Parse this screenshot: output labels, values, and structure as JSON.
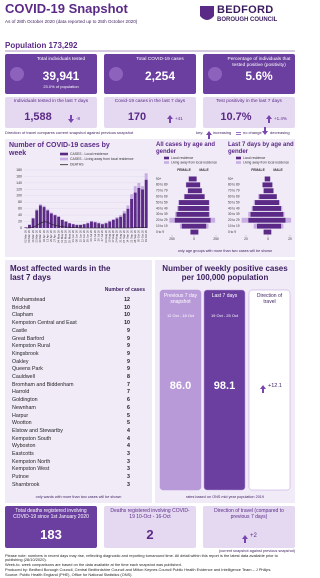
{
  "header": {
    "title": "COVID-19 Snapshot",
    "subtitle": "As of 28th October 2020 (data reported up to 25th October 2020)",
    "logo_main": "BEDFORD",
    "logo_sub": "BOROUGH COUNCIL"
  },
  "population": "Population 173,292",
  "totals": [
    {
      "label": "Total individuals tested",
      "value": "39,941",
      "note": "23.0% of population"
    },
    {
      "label": "Total COVID-19 cases",
      "value": "2,254"
    },
    {
      "label": "Percentage of individuals that tested positive (positivity)",
      "value": "5.6%"
    }
  ],
  "last_7_days": [
    {
      "label": "Individuals tested in the last 7 days",
      "value": "1,588",
      "change": "-8",
      "direction": "down"
    },
    {
      "label": "Covid-19 cases in the last 7 days",
      "value": "170",
      "change": "+41",
      "direction": "up"
    },
    {
      "label": "Test positivity in the last 7 days",
      "value": "10.7%",
      "change": "+1.4%",
      "direction": "up"
    }
  ],
  "travel_note": "Direction of travel compares current snapshot against previous snapshot",
  "key": {
    "label": "key:",
    "increasing": "increasing",
    "no_change": "no change",
    "decreasing": "decreasing"
  },
  "weekly_chart": {
    "type": "bar",
    "title": "Number of COVID-19 cases by week",
    "categories": [
      "02 Mar 20",
      "09 Mar 20",
      "16 Mar 20",
      "23 Mar 20",
      "30 Mar 20",
      "06 Apr 20",
      "13 Apr 20",
      "20 Apr 20",
      "27 Apr 20",
      "04 May 20",
      "11 May 20",
      "18 May 20",
      "25 May 20",
      "01 Jun 20",
      "08 Jun 20",
      "15 Jun 20",
      "22 Jun 20",
      "29 Jun 20",
      "06 Jul 20",
      "13 Jul 20",
      "20 Jul 20",
      "27 Jul 20",
      "03 Aug 20",
      "10 Aug 20",
      "17 Aug 20",
      "24 Aug 20",
      "31 Aug 20",
      "07 Sep 20",
      "14 Sep 20",
      "21 Sep 20",
      "28 Sep 20",
      "05 Oct 20",
      "12 Oct 20",
      "19 Oct 20"
    ],
    "series": [
      {
        "name": "CASES - Local residence",
        "color": "#5b2a86",
        "values": [
          2,
          10,
          30,
          55,
          70,
          65,
          55,
          45,
          40,
          35,
          25,
          20,
          15,
          12,
          10,
          10,
          12,
          15,
          20,
          18,
          15,
          12,
          15,
          20,
          25,
          30,
          35,
          45,
          60,
          90,
          110,
          125,
          120,
          150
        ]
      },
      {
        "name": "CASES - Living away from local residence",
        "color": "#c7aee3",
        "values": [
          0,
          0,
          2,
          3,
          4,
          4,
          3,
          3,
          2,
          2,
          2,
          1,
          1,
          1,
          1,
          1,
          1,
          2,
          2,
          2,
          2,
          2,
          2,
          3,
          3,
          4,
          5,
          8,
          10,
          15,
          20,
          15,
          10,
          20
        ]
      },
      {
        "name": "DEATHS",
        "color": "#222222",
        "type": "line",
        "values": [
          0,
          0,
          2,
          8,
          15,
          20,
          18,
          12,
          8,
          6,
          4,
          3,
          2,
          1,
          1,
          0,
          0,
          0,
          0,
          0,
          0,
          0,
          0,
          0,
          0,
          0,
          0,
          0,
          0,
          0,
          1,
          1,
          2,
          2
        ]
      }
    ],
    "ylim": [
      0,
      180
    ],
    "yticks": [
      0,
      20,
      40,
      60,
      80,
      100,
      120,
      140,
      160,
      180
    ]
  },
  "age_charts": [
    {
      "type": "pyramid",
      "title": "All cases by age and gender",
      "left_label": "FEMALE",
      "right_label": "MALE",
      "categories": [
        "90+",
        "80 to 89",
        "70 to 79",
        "60 to 69",
        "50 to 59",
        "40 to 49",
        "30 to 39",
        "20 to 29",
        "10 to 19",
        "0 to 9"
      ],
      "series": [
        {
          "name": "Local residence",
          "color": "#5b2a86",
          "female": [
            60,
            90,
            70,
            110,
            170,
            180,
            200,
            220,
            140,
            40
          ],
          "male": [
            30,
            70,
            90,
            120,
            170,
            170,
            170,
            190,
            140,
            50
          ]
        },
        {
          "name": "Living away from local residence",
          "color": "#c7aee3",
          "female": [
            2,
            3,
            3,
            5,
            10,
            12,
            15,
            60,
            20,
            2
          ],
          "male": [
            1,
            2,
            3,
            5,
            8,
            10,
            12,
            50,
            25,
            2
          ]
        }
      ],
      "xlim": [
        -250,
        250
      ],
      "xticks": [
        {
          "value": -250,
          "label": "250"
        },
        0,
        250
      ]
    },
    {
      "type": "pyramid",
      "title": "Last 7 days by age and gender",
      "left_label": "FEMALE",
      "right_label": "MALE",
      "categories": [
        "90+",
        "80 to 89",
        "70 to 79",
        "60 to 69",
        "50 to 59",
        "40 to 49",
        "30 to 39",
        "20 to 29",
        "10 to 19",
        "0 to 9"
      ],
      "series": [
        {
          "name": "Local residence",
          "color": "#5b2a86",
          "female": [
            3,
            5,
            4,
            8,
            12,
            14,
            16,
            18,
            10,
            4
          ],
          "male": [
            2,
            4,
            5,
            8,
            10,
            12,
            14,
            16,
            12,
            3
          ]
        },
        {
          "name": "Living away from local residence",
          "color": "#c7aee3",
          "female": [
            0,
            0,
            0,
            1,
            1,
            1,
            2,
            6,
            3,
            0
          ],
          "male": [
            0,
            0,
            0,
            0,
            1,
            1,
            1,
            5,
            2,
            0
          ]
        }
      ],
      "xlim": [
        -20,
        20
      ],
      "xticks": [
        {
          "value": -20,
          "label": "20"
        },
        0,
        20
      ]
    }
  ],
  "age_note": "only age groups with more than two cases will be shown",
  "wards": {
    "title": "Most affected wards in the last 7 days",
    "column": "Number of cases",
    "rows": [
      [
        "Wilshamstead",
        12
      ],
      [
        "Brickhill",
        10
      ],
      [
        "Clapham",
        10
      ],
      [
        "Kempston Central and East",
        10
      ],
      [
        "Castle",
        9
      ],
      [
        "Great Barford",
        9
      ],
      [
        "Kempston Rural",
        9
      ],
      [
        "Kingsbrook",
        9
      ],
      [
        "Oakley",
        9
      ],
      [
        "Queens Park",
        9
      ],
      [
        "Cauldwell",
        8
      ],
      [
        "Bromham and Biddenham",
        7
      ],
      [
        "Harrold",
        7
      ],
      [
        "Goldington",
        6
      ],
      [
        "Newnham",
        6
      ],
      [
        "Harpur",
        5
      ],
      [
        "Wootton",
        5
      ],
      [
        "Elstow and Stewartby",
        4
      ],
      [
        "Kempston South",
        4
      ],
      [
        "Wyboston",
        4
      ],
      [
        "Eastcotts",
        3
      ],
      [
        "Kempston North",
        3
      ],
      [
        "Kempston West",
        3
      ],
      [
        "Putnoe",
        3
      ],
      [
        "Sharnbrook",
        3
      ]
    ],
    "note": "only wards with more than two cases will be shown"
  },
  "rates": {
    "title": "Number of weekly positive cases per 100,000 population",
    "previous": {
      "label": "Previous 7 day snapshot",
      "dates": "12 Oct - 18 Oct",
      "value": "86.0"
    },
    "last": {
      "label": "Last 7 days",
      "dates": "19 Oct - 25 Oct",
      "value": "98.1"
    },
    "travel": {
      "label": "Direction of travel",
      "value": "+12.1",
      "direction": "up"
    },
    "note": "rates based on ONS mid year population 2019"
  },
  "deaths": [
    {
      "label": "Total deaths registered involving COVID-19 since 1st January 2020",
      "value": "183"
    },
    {
      "label": "Deaths registered involving COVID-19 10-Oct - 16-Oct",
      "value": "2"
    },
    {
      "label": "Direction of travel (compared to previous 7 days)",
      "value": "+2",
      "direction": "up"
    }
  ],
  "deaths_note": "(current snapshot against previous snapshot)",
  "footer": [
    "Please note: numbers in recent days may rise, reflecting diagnostic and reporting turnaround time. All detail within this report is the latest data available prior to publishing (28/10/2020).",
    "Week-to- week comparisons are based on the data available at the time each snapshot was published.",
    "Produced by: Bedford Borough Council, Central Bedfordshire Council and Milton Keynes Council Public Health Evidence and Intelligence Team – J Philips.",
    "Source: Public Health England (PHE), Office for National Statistics (ONS)."
  ]
}
